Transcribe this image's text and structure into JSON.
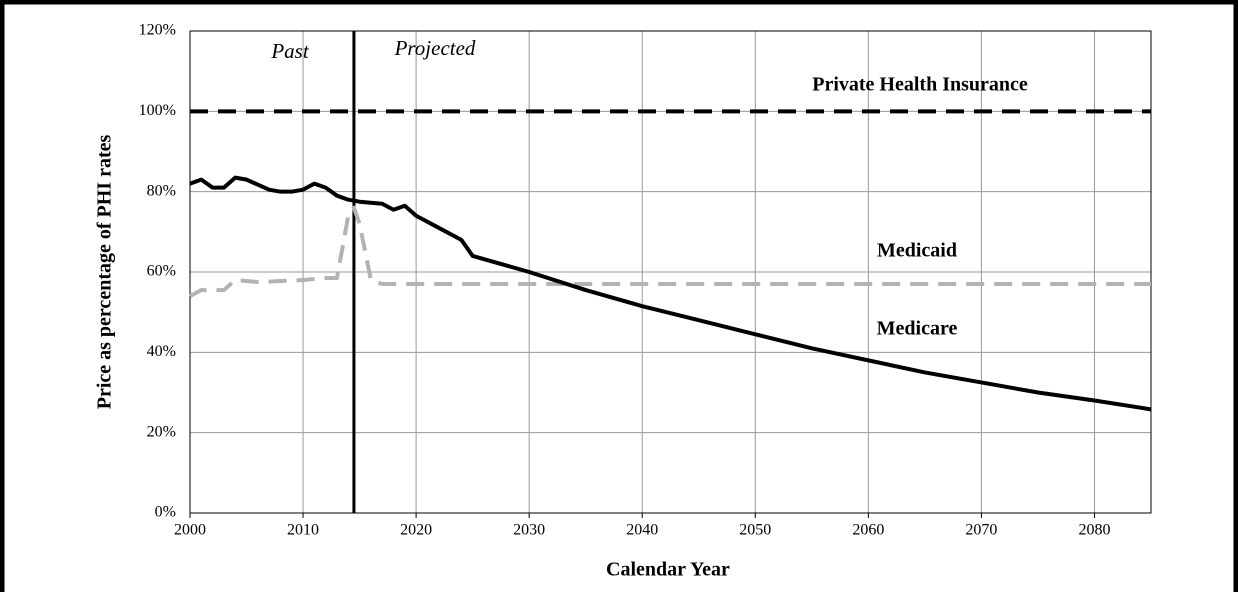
{
  "chart_data": {
    "type": "line",
    "xlabel": "Calendar Year",
    "ylabel": "Price as percentage of PHI rates",
    "xlim": [
      2000,
      2085
    ],
    "xticks": [
      2000,
      2010,
      2020,
      2030,
      2040,
      2050,
      2060,
      2070,
      2080
    ],
    "ylim": [
      0,
      120
    ],
    "yticks": [
      {
        "value": 0,
        "label": "0%"
      },
      {
        "value": 20,
        "label": "20%"
      },
      {
        "value": 40,
        "label": "40%"
      },
      {
        "value": 60,
        "label": "60%"
      },
      {
        "value": 80,
        "label": "80%"
      },
      {
        "value": 100,
        "label": "100%"
      },
      {
        "value": 120,
        "label": "120%"
      }
    ],
    "grid": true,
    "divider_x": 2014.5,
    "annotations": [
      "Past",
      "Projected"
    ],
    "series": [
      {
        "name": "Private Health Insurance",
        "color": "#000000",
        "style": "dashed",
        "x": [
          2000,
          2085
        ],
        "values": [
          100,
          100
        ]
      },
      {
        "name": "Medicaid",
        "color": "#b3b3b3",
        "style": "dashed",
        "x": [
          2000,
          2001,
          2003,
          2004,
          2006,
          2010,
          2012,
          2013,
          2014,
          2014.5,
          2015,
          2016,
          2017,
          2020,
          2085
        ],
        "values": [
          54,
          55.5,
          55.5,
          58,
          57.5,
          58,
          58.5,
          58.5,
          74,
          76,
          72,
          58,
          57,
          57,
          57
        ]
      },
      {
        "name": "Medicare",
        "color": "#000000",
        "style": "solid",
        "x": [
          2000,
          2001,
          2002,
          2003,
          2004,
          2005,
          2007,
          2008,
          2009,
          2010,
          2011,
          2012,
          2013,
          2014,
          2015,
          2017,
          2018,
          2019,
          2020,
          2022,
          2024,
          2025,
          2030,
          2035,
          2040,
          2045,
          2050,
          2055,
          2060,
          2065,
          2070,
          2075,
          2080,
          2085
        ],
        "values": [
          82,
          83,
          81,
          81,
          83.5,
          83,
          80.5,
          80,
          80,
          80.5,
          82,
          81,
          79,
          78,
          77.5,
          77,
          75.5,
          76.5,
          74,
          71,
          68,
          64,
          60,
          55.5,
          51.5,
          48,
          44.5,
          41,
          38,
          35,
          32.5,
          30,
          28,
          25.8
        ]
      }
    ]
  }
}
